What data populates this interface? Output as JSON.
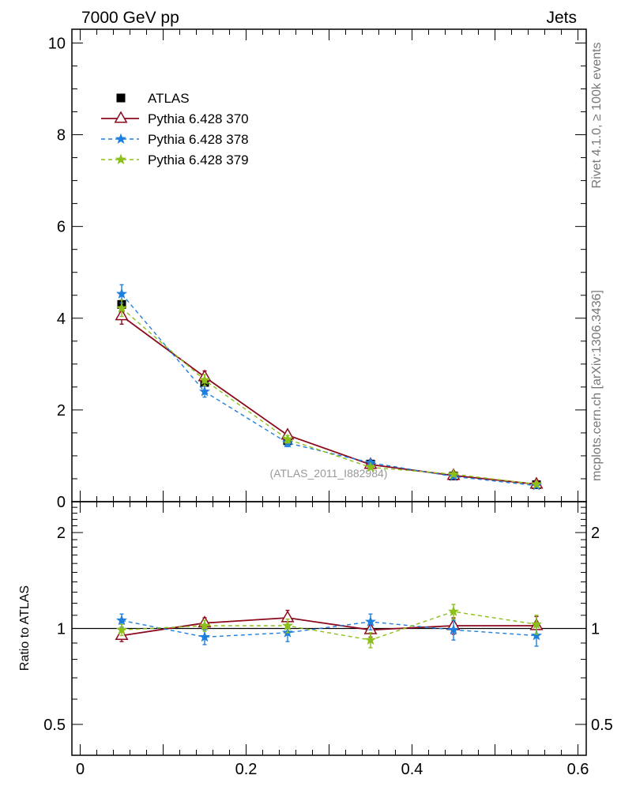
{
  "header": {
    "left_title": "7000 GeV pp",
    "right_title": "Jets"
  },
  "side_labels": {
    "rivet": "Rivet 4.1.0, ≥ 100k events",
    "mcplots": "mcplots.cern.ch [arXiv:1306.3436]"
  },
  "chart_data": {
    "type": "line",
    "analysis_label": "(ATLAS_2011_I882984)",
    "main_panel": {
      "ylim": [
        0,
        10.3
      ],
      "yticks": [
        0,
        2,
        4,
        6,
        8,
        10
      ],
      "ytick_labels": [
        "0",
        "2",
        "4",
        "6",
        "8",
        "10"
      ],
      "ylabel": ""
    },
    "ratio_panel": {
      "ylabel": "Ratio to ATLAS",
      "ylim": [
        0.4,
        2.5
      ],
      "yscale": "log",
      "ytick_labels_left": [
        "0.5",
        "1",
        "2"
      ],
      "ytick_labels_right": [
        "0.5",
        "1",
        "2"
      ],
      "ytick_values": [
        0.5,
        1,
        2
      ]
    },
    "xlim": [
      -0.01,
      0.61
    ],
    "xticks": [
      0,
      0.2,
      0.4,
      0.6
    ],
    "xtick_labels": [
      "0",
      "0.2",
      "0.4",
      "0.6"
    ],
    "x": [
      0.05,
      0.15,
      0.25,
      0.35,
      0.45,
      0.55
    ],
    "data": {
      "name": "ATLAS",
      "color": "#000000",
      "values": [
        4.3,
        2.6,
        1.33,
        0.82,
        0.56,
        0.37
      ]
    },
    "series": [
      {
        "name": "Pythia 6.428 370",
        "color": "#8b0a1e",
        "style": "solid",
        "marker": "triangle-open",
        "values": [
          4.05,
          2.72,
          1.45,
          0.81,
          0.57,
          0.38
        ],
        "errors": [
          0.18,
          0.13,
          0.09,
          0.04,
          0.03,
          0.02
        ],
        "ratio": [
          0.95,
          1.04,
          1.08,
          0.99,
          1.02,
          1.02
        ],
        "ratio_errors": [
          0.04,
          0.04,
          0.06,
          0.05,
          0.06,
          0.07
        ]
      },
      {
        "name": "Pythia 6.428 378",
        "color": "#1f7fdd",
        "style": "dashed",
        "marker": "star",
        "values": [
          4.53,
          2.4,
          1.28,
          0.85,
          0.55,
          0.35
        ],
        "errors": [
          0.2,
          0.12,
          0.08,
          0.04,
          0.03,
          0.02
        ],
        "ratio": [
          1.06,
          0.94,
          0.97,
          1.05,
          0.99,
          0.95
        ],
        "ratio_errors": [
          0.05,
          0.05,
          0.06,
          0.06,
          0.07,
          0.07
        ]
      },
      {
        "name": "Pythia 6.428 379",
        "color": "#8cbf1a",
        "style": "dashed",
        "marker": "star",
        "values": [
          4.22,
          2.65,
          1.36,
          0.75,
          0.6,
          0.38
        ],
        "errors": [
          0.18,
          0.12,
          0.08,
          0.04,
          0.03,
          0.02
        ],
        "ratio": [
          0.99,
          1.02,
          1.02,
          0.92,
          1.13,
          1.03
        ],
        "ratio_errors": [
          0.04,
          0.04,
          0.05,
          0.05,
          0.06,
          0.07
        ]
      }
    ]
  }
}
